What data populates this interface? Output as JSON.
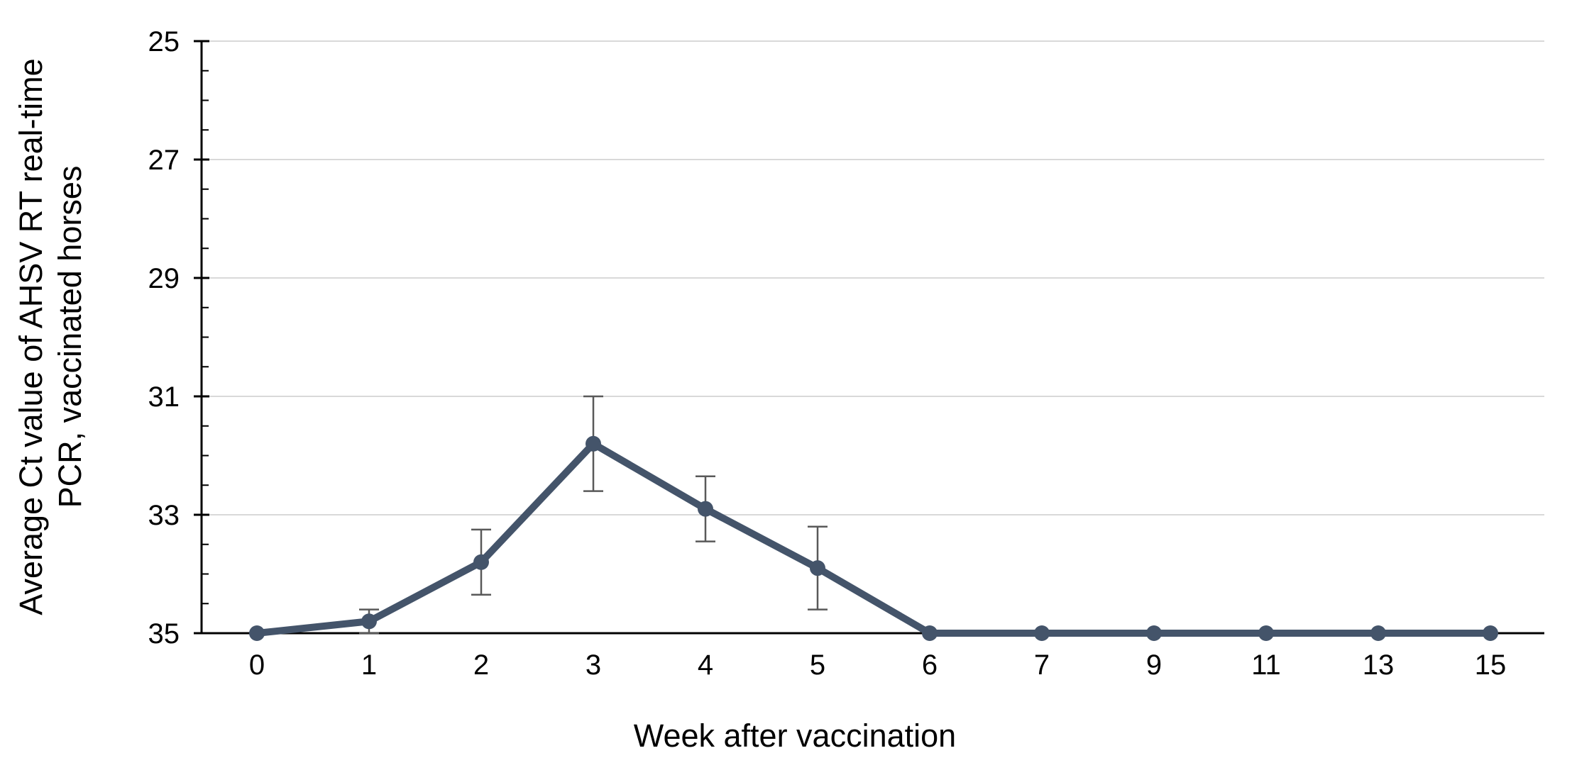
{
  "chart_data": {
    "type": "line",
    "title": "",
    "xlabel": "Week after vaccination",
    "ylabel": "Average Ct value of AHSV RT real-time PCR, vaccinated horses",
    "ylabel_lines": [
      "Average Ct value of AHSV RT real-time",
      "PCR, vaccinated horses"
    ],
    "categories": [
      "0",
      "1",
      "2",
      "3",
      "4",
      "5",
      "6",
      "7",
      "9",
      "11",
      "13",
      "15"
    ],
    "series": [
      {
        "name": "Average Ct value, vaccinated horses",
        "values": [
          35,
          34.8,
          33.8,
          31.8,
          32.9,
          33.9,
          35,
          35,
          35,
          35,
          35,
          35
        ],
        "error_bars": [
          0,
          0.2,
          0.55,
          0.8,
          0.55,
          0.7,
          0,
          0,
          0,
          0,
          0,
          0
        ]
      }
    ],
    "y_axis": {
      "min": 25,
      "max": 35,
      "inverted": true,
      "major_tick_step": 2,
      "minor_tick_step": 0.5,
      "tick_labels": [
        "25",
        "27",
        "29",
        "31",
        "33",
        "35"
      ]
    },
    "x_axis": {
      "spacing": "categorical"
    },
    "grid": "horizontal-major",
    "legend": "none",
    "colors": {
      "series": "#44546A",
      "error_bar": "#595959",
      "gridline": "#D9D9D9",
      "axis": "#000000",
      "text": "#000000",
      "background": "#FFFFFF"
    }
  }
}
